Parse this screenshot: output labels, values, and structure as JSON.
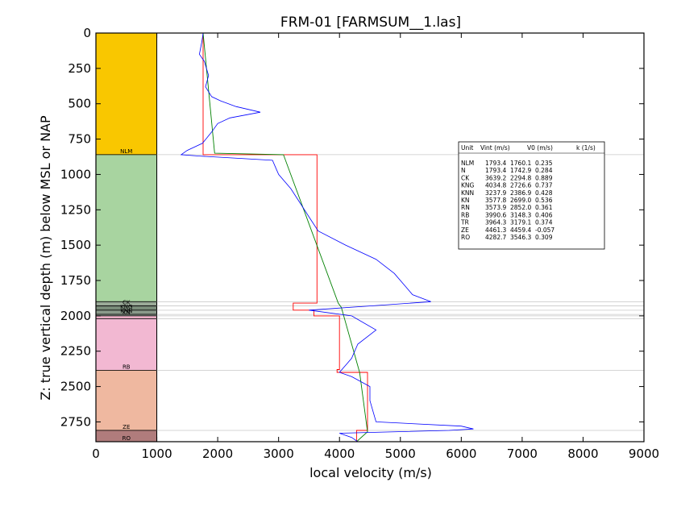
{
  "chart_data": {
    "type": "line",
    "title": "FRM-01 [FARMSUM__1.las]",
    "xlabel": "local velocity (m/s)",
    "ylabel": "Z: true vertical depth (m) below MSL or NAP",
    "xlim": [
      0,
      9000
    ],
    "ylim": [
      2890,
      0
    ],
    "x_ticks": [
      0,
      1000,
      2000,
      3000,
      4000,
      5000,
      6000,
      7000,
      8000,
      9000
    ],
    "y_ticks": [
      0,
      250,
      500,
      750,
      1000,
      1250,
      1500,
      1750,
      2000,
      2250,
      2500,
      2750
    ],
    "grid": false,
    "strat_units": [
      {
        "name": "NLM",
        "top": 0,
        "base": 860,
        "color": "#f9c700",
        "label": "NLM"
      },
      {
        "name": "N",
        "top": 860,
        "base": 1900,
        "color": "#a8d4a0",
        "label": ""
      },
      {
        "name": "CK",
        "top": 1900,
        "base": 1930,
        "color": "#9aaa98",
        "label": "CK"
      },
      {
        "name": "KNG",
        "top": 1930,
        "base": 1960,
        "color": "#7a8c7a",
        "label": "KNG"
      },
      {
        "name": "KNN",
        "top": 1960,
        "base": 1990,
        "color": "#8a9a8a",
        "label": "KNN"
      },
      {
        "name": "KN",
        "top": 1990,
        "base": 2000,
        "color": "#aab8aa",
        "label": "KN"
      },
      {
        "name": "RN",
        "top": 2000,
        "base": 2020,
        "color": "#f0b0c8",
        "label": ""
      },
      {
        "name": "RB",
        "top": 2020,
        "base": 2385,
        "color": "#f2b8d2",
        "label": "RB"
      },
      {
        "name": "TR",
        "top": 2385,
        "base": 2810,
        "color": "#efb8a0",
        "label": "ZE"
      },
      {
        "name": "RO",
        "top": 2810,
        "base": 2890,
        "color": "#b07c7c",
        "label": "RO"
      }
    ],
    "table": {
      "header": [
        "Unit",
        "Vint (m/s)",
        "V0 (m/s)",
        "k (1/s)"
      ],
      "rows": [
        [
          "NLM",
          "1793.4",
          "1760.1",
          "0.235"
        ],
        [
          "N",
          "1793.4",
          "1742.9",
          "0.284"
        ],
        [
          "CK",
          "3639.2",
          "2294.8",
          "0.889"
        ],
        [
          "KNG",
          "4034.8",
          "2726.6",
          "0.737"
        ],
        [
          "KNN",
          "3237.9",
          "2386.9",
          "0.428"
        ],
        [
          "KN",
          "3577.8",
          "2699.0",
          "0.536"
        ],
        [
          "RN",
          "3573.9",
          "2852.0",
          "0.361"
        ],
        [
          "RB",
          "3990.6",
          "3148.3",
          "0.406"
        ],
        [
          "TR",
          "3964.3",
          "3179.1",
          "0.374"
        ],
        [
          "ZE",
          "4461.3",
          "4459.4",
          "-0.057"
        ],
        [
          "RO",
          "4282.7",
          "3546.3",
          "0.309"
        ]
      ]
    },
    "series": [
      {
        "name": "",
        "color": "#ff0000",
        "style": "interval-velocity-steps",
        "x": [
          1760,
          1760,
          1800,
          1800,
          3630,
          3630,
          3240,
          3240,
          3580,
          3580,
          4000,
          4000,
          3960,
          3960,
          4460,
          4460,
          4280,
          4280
        ],
        "y": [
          0,
          860,
          860,
          860,
          860,
          1910,
          1910,
          1960,
          1960,
          2000,
          2000,
          2380,
          2380,
          2400,
          2400,
          2810,
          2810,
          2890
        ]
      },
      {
        "name": "",
        "color": "#008000",
        "style": "v0-k-trend",
        "x": [
          1760,
          1950,
          1950,
          3080,
          3980,
          3980,
          4030,
          4030,
          4330,
          4330,
          4460,
          4460,
          4280
        ],
        "y": [
          0,
          850,
          850,
          860,
          1910,
          1910,
          1940,
          1940,
          2400,
          2400,
          2820,
          2820,
          2890
        ]
      },
      {
        "name": "",
        "color": "#0000ff",
        "style": "log-velocity",
        "x": [
          1760,
          1740,
          1700,
          1780,
          1850,
          1800,
          1900,
          2050,
          2300,
          2700,
          2200,
          2000,
          1900,
          1750,
          1500,
          1400,
          1700,
          2900,
          2950,
          3000,
          3200,
          3350,
          3500,
          3650,
          4100,
          4600,
          4900,
          5100,
          5200,
          5500,
          4500,
          3500,
          4200,
          4600,
          4300,
          4200,
          4100,
          4000,
          4200,
          4500,
          4500,
          4600,
          6000,
          6200,
          5800,
          4000,
          4200,
          4300
        ],
        "y": [
          0,
          60,
          150,
          200,
          300,
          380,
          450,
          480,
          520,
          560,
          600,
          640,
          700,
          780,
          830,
          860,
          870,
          900,
          950,
          1000,
          1100,
          1200,
          1300,
          1400,
          1500,
          1600,
          1700,
          1800,
          1850,
          1900,
          1930,
          1960,
          2000,
          2100,
          2200,
          2300,
          2350,
          2400,
          2430,
          2500,
          2600,
          2750,
          2780,
          2800,
          2810,
          2830,
          2860,
          2890
        ]
      }
    ]
  }
}
